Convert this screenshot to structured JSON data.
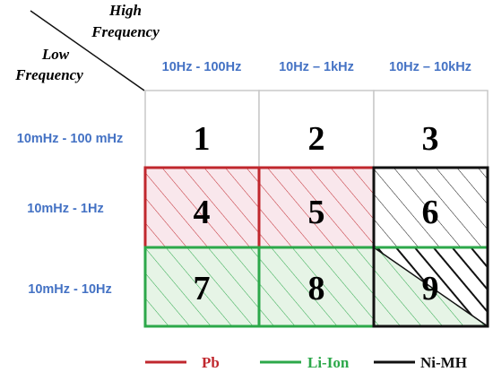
{
  "corner": {
    "high_line1": "High",
    "high_line2": "Frequency",
    "low_line1": "Low",
    "low_line2": "Frequency"
  },
  "columns": [
    "10Hz - 100Hz",
    "10Hz – 1kHz",
    "10Hz – 10kHz"
  ],
  "rows": [
    "10mHz - 100 mHz",
    "10mHz - 1Hz",
    "10mHz - 10Hz"
  ],
  "cells": [
    "1",
    "2",
    "3",
    "4",
    "5",
    "6",
    "7",
    "8",
    "9"
  ],
  "legend": [
    {
      "label": "Pb",
      "color": "#c0272d"
    },
    {
      "label": "Li-Ion",
      "color": "#2ca84a"
    },
    {
      "label": "Ni-MH",
      "color": "#111111"
    }
  ],
  "colors": {
    "header_text": "#4472c4",
    "grid_line": "#c8c8c8",
    "pb_fill": "#f9e7ec",
    "liion_fill": "#e6f4e6"
  }
}
